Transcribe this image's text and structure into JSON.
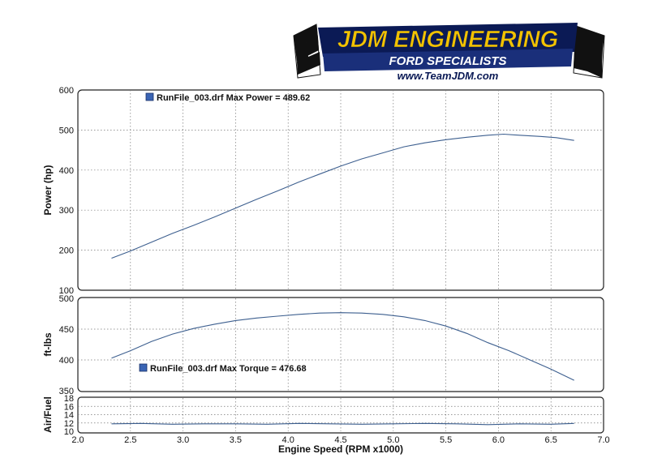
{
  "logo": {
    "name": "JDM ENGINEERING",
    "tagline": "FORD SPECIALISTS",
    "url": "www.TeamJDM.com"
  },
  "colors": {
    "series": "#3d5f8f",
    "legend_marker": "#3a64b4",
    "logo_navy": "#0b1a55",
    "logo_gold": "#f2c200"
  },
  "chart_data": [
    {
      "type": "line",
      "ylabel": "Power (hp)",
      "ylim": [
        100,
        600
      ],
      "yticks": [
        "100",
        "200",
        "300",
        "400",
        "500",
        "600"
      ],
      "legend": "RunFile_003.drf Max Power = 489.62",
      "legend_position": "top-left",
      "series": [
        {
          "x": [
            2.32,
            2.5,
            2.7,
            2.9,
            3.1,
            3.3,
            3.5,
            3.7,
            3.9,
            4.1,
            4.3,
            4.5,
            4.7,
            4.9,
            5.1,
            5.3,
            5.5,
            5.7,
            5.9,
            6.05,
            6.2,
            6.4,
            6.55,
            6.72
          ],
          "y": [
            180,
            198,
            220,
            242,
            262,
            283,
            305,
            327,
            348,
            370,
            390,
            410,
            428,
            443,
            458,
            468,
            476,
            482,
            487,
            489.6,
            487,
            484,
            481,
            474
          ]
        }
      ]
    },
    {
      "type": "line",
      "ylabel": "ft-lbs",
      "ylim": [
        350,
        500
      ],
      "yticks": [
        "350",
        "400",
        "450",
        "500"
      ],
      "legend": "RunFile_003.drf Max Torque = 476.68",
      "legend_position": "bottom-left",
      "series": [
        {
          "x": [
            2.32,
            2.5,
            2.7,
            2.9,
            3.1,
            3.3,
            3.5,
            3.7,
            3.9,
            4.1,
            4.3,
            4.5,
            4.7,
            4.9,
            5.1,
            5.3,
            5.5,
            5.7,
            5.9,
            6.1,
            6.3,
            6.5,
            6.72
          ],
          "y": [
            403,
            415,
            430,
            442,
            451,
            458,
            464,
            468,
            471,
            474,
            476,
            476.7,
            476,
            474,
            470,
            464,
            455,
            443,
            428,
            415,
            400,
            385,
            367
          ]
        }
      ]
    },
    {
      "type": "line",
      "ylabel": "Air/Fuel",
      "ylim": [
        10,
        18
      ],
      "yticks": [
        "10",
        "12",
        "14",
        "16",
        "18"
      ],
      "xlabel": "Engine Speed (RPM x1000)",
      "xlim": [
        2.0,
        7.0
      ],
      "xticks": [
        "2.0",
        "2.5",
        "3.0",
        "3.5",
        "4.0",
        "4.5",
        "5.0",
        "5.5",
        "6.0",
        "6.5",
        "7.0"
      ],
      "series": [
        {
          "x": [
            2.32,
            2.6,
            2.9,
            3.2,
            3.5,
            3.8,
            4.1,
            4.4,
            4.7,
            5.0,
            5.3,
            5.6,
            5.9,
            6.2,
            6.5,
            6.72
          ],
          "y": [
            11.8,
            11.9,
            11.7,
            11.8,
            11.8,
            11.7,
            11.9,
            11.8,
            11.7,
            11.8,
            11.9,
            11.8,
            11.6,
            11.8,
            11.7,
            11.9
          ]
        }
      ]
    }
  ]
}
